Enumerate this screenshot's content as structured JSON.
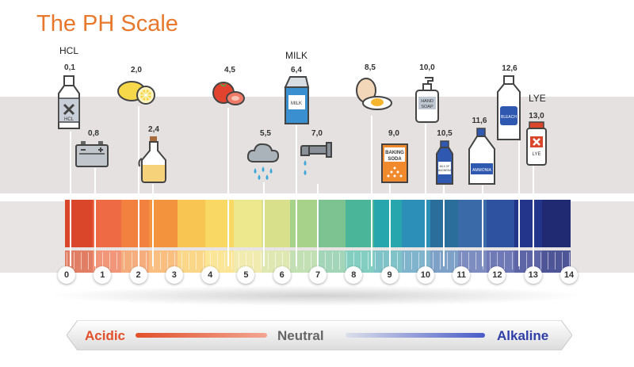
{
  "title": "The PH Scale",
  "scale_numbers": [
    "0",
    "1",
    "2",
    "3",
    "4",
    "5",
    "6",
    "7",
    "8",
    "9",
    "10",
    "11",
    "12",
    "13",
    "14"
  ],
  "bar_colors": [
    "#d9462a",
    "#ee6a45",
    "#f2803f",
    "#f4933e",
    "#f8c552",
    "#f9d963",
    "#ede78e",
    "#d9e08c",
    "#a6d28a",
    "#7cc391",
    "#4bb59a",
    "#27a7ad",
    "#2b8fb8",
    "#2a6f9b",
    "#3a6aa8",
    "#2f52a0",
    "#23348b",
    "#1f2a73"
  ],
  "tick_colors": [
    "#e27e64",
    "#f2967a",
    "#f6ad7d",
    "#f9be80",
    "#fad688",
    "#fbe597",
    "#f1ebb0",
    "#dfe8b3",
    "#c2e0b4",
    "#a3d6b9",
    "#83cec0",
    "#7fc3c8",
    "#7fb4cc",
    "#7ea1c8",
    "#7e8dc0",
    "#6f79b6",
    "#5e65a7",
    "#4e5697"
  ],
  "substances": [
    {
      "ph": "0,1",
      "name": "HCL",
      "icon": "hcl-bottle-icon"
    },
    {
      "ph": "0,8",
      "name": "",
      "icon": "car-battery-icon"
    },
    {
      "ph": "2,0",
      "name": "",
      "icon": "lemon-icon"
    },
    {
      "ph": "2,4",
      "name": "",
      "icon": "vinegar-jar-icon"
    },
    {
      "ph": "4,5",
      "name": "",
      "icon": "tomato-icon"
    },
    {
      "ph": "5,5",
      "name": "",
      "icon": "rain-cloud-icon"
    },
    {
      "ph": "6,4",
      "name": "MILK",
      "icon": "milk-carton-icon"
    },
    {
      "ph": "7,0",
      "name": "",
      "icon": "water-tap-icon"
    },
    {
      "ph": "8,5",
      "name": "",
      "icon": "egg-icon"
    },
    {
      "ph": "9,0",
      "name": "",
      "icon": "baking-soda-icon"
    },
    {
      "ph": "10,0",
      "name": "",
      "icon": "hand-soap-icon"
    },
    {
      "ph": "10,5",
      "name": "",
      "icon": "milk-of-magnesia-icon"
    },
    {
      "ph": "11,6",
      "name": "",
      "icon": "ammonia-bottle-icon"
    },
    {
      "ph": "12,6",
      "name": "",
      "icon": "bleach-bottle-icon"
    },
    {
      "ph": "13,0",
      "name": "LYE",
      "icon": "lye-bottle-icon"
    }
  ],
  "icon_labels": {
    "hcl": "HCL",
    "milk_carton": "MILK",
    "baking_soda_line1": "BAKING",
    "baking_soda_line2": "SODA",
    "hand_soap_line1": "HAND",
    "hand_soap_line2": "SOAP",
    "magnesia_line1": "MILK OF",
    "magnesia_line2": "MAGNESIA",
    "ammonia": "AMMONIA",
    "bleach": "BLEACH",
    "lye": "LYE"
  },
  "legend": {
    "acidic": "Acidic",
    "neutral": "Neutral",
    "alkaline": "Alkaline",
    "acidic_color": "#e2502a",
    "neutral_color": "#666666",
    "alkaline_color": "#2f3fa8"
  }
}
